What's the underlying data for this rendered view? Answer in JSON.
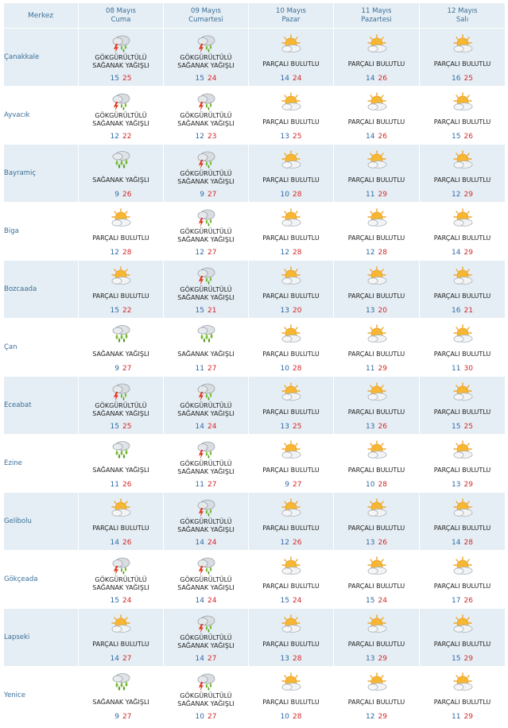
{
  "header": {
    "center_label": "Merkez",
    "days": [
      {
        "date": "08 Mayıs",
        "day": "Cuma"
      },
      {
        "date": "09 Mayıs",
        "day": "Cumartesi"
      },
      {
        "date": "10 Mayıs",
        "day": "Pazar"
      },
      {
        "date": "11 Mayıs",
        "day": "Pazartesi"
      },
      {
        "date": "12 Mayıs",
        "day": "Salı"
      }
    ]
  },
  "conditions": {
    "storm": {
      "line1": "GÖKGÜRÜLTÜLÜ",
      "line2": "SAĞANAK YAĞIŞLI",
      "icon": "thunderstorm-icon"
    },
    "showers": {
      "line1": "SAĞANAK YAĞIŞLI",
      "line2": "",
      "icon": "rain-showers-icon"
    },
    "partly": {
      "line1": "PARÇALI BULUTLU",
      "line2": "",
      "icon": "partly-cloudy-icon"
    }
  },
  "colors": {
    "header_bg": "#e5eef4",
    "row_shade": "#e5eef4",
    "label_blue": "#3b6f99",
    "min_temp": "#2f6aa8",
    "max_temp": "#d0292c"
  },
  "rows": [
    {
      "city": "Çanakkale",
      "days": [
        {
          "cond": "storm",
          "min": "15",
          "max": "25"
        },
        {
          "cond": "storm",
          "min": "15",
          "max": "24"
        },
        {
          "cond": "partly",
          "min": "14",
          "max": "24"
        },
        {
          "cond": "partly",
          "min": "14",
          "max": "26"
        },
        {
          "cond": "partly",
          "min": "16",
          "max": "25"
        }
      ]
    },
    {
      "city": "Ayvacık",
      "days": [
        {
          "cond": "storm",
          "min": "12",
          "max": "22"
        },
        {
          "cond": "storm",
          "min": "12",
          "max": "23"
        },
        {
          "cond": "partly",
          "min": "13",
          "max": "25"
        },
        {
          "cond": "partly",
          "min": "14",
          "max": "26"
        },
        {
          "cond": "partly",
          "min": "15",
          "max": "26"
        }
      ]
    },
    {
      "city": "Bayramiç",
      "days": [
        {
          "cond": "showers",
          "min": "9",
          "max": "26"
        },
        {
          "cond": "storm",
          "min": "9",
          "max": "27"
        },
        {
          "cond": "partly",
          "min": "10",
          "max": "28"
        },
        {
          "cond": "partly",
          "min": "11",
          "max": "29"
        },
        {
          "cond": "partly",
          "min": "12",
          "max": "29"
        }
      ]
    },
    {
      "city": "Biga",
      "days": [
        {
          "cond": "partly",
          "min": "12",
          "max": "28"
        },
        {
          "cond": "storm",
          "min": "12",
          "max": "27"
        },
        {
          "cond": "partly",
          "min": "12",
          "max": "28"
        },
        {
          "cond": "partly",
          "min": "12",
          "max": "28"
        },
        {
          "cond": "partly",
          "min": "14",
          "max": "29"
        }
      ]
    },
    {
      "city": "Bozcaada",
      "days": [
        {
          "cond": "partly",
          "min": "15",
          "max": "22"
        },
        {
          "cond": "storm",
          "min": "15",
          "max": "21"
        },
        {
          "cond": "partly",
          "min": "13",
          "max": "20"
        },
        {
          "cond": "partly",
          "min": "13",
          "max": "20"
        },
        {
          "cond": "partly",
          "min": "16",
          "max": "21"
        }
      ]
    },
    {
      "city": "Çan",
      "days": [
        {
          "cond": "showers",
          "min": "9",
          "max": "27"
        },
        {
          "cond": "showers",
          "min": "11",
          "max": "27"
        },
        {
          "cond": "partly",
          "min": "10",
          "max": "28"
        },
        {
          "cond": "partly",
          "min": "11",
          "max": "29"
        },
        {
          "cond": "partly",
          "min": "11",
          "max": "30"
        }
      ]
    },
    {
      "city": "Eceabat",
      "days": [
        {
          "cond": "storm",
          "min": "15",
          "max": "25"
        },
        {
          "cond": "storm",
          "min": "14",
          "max": "24"
        },
        {
          "cond": "partly",
          "min": "13",
          "max": "25"
        },
        {
          "cond": "partly",
          "min": "13",
          "max": "26"
        },
        {
          "cond": "partly",
          "min": "15",
          "max": "25"
        }
      ]
    },
    {
      "city": "Ezine",
      "days": [
        {
          "cond": "showers",
          "min": "11",
          "max": "26"
        },
        {
          "cond": "storm",
          "min": "11",
          "max": "27"
        },
        {
          "cond": "partly",
          "min": "9",
          "max": "27"
        },
        {
          "cond": "partly",
          "min": "10",
          "max": "28"
        },
        {
          "cond": "partly",
          "min": "13",
          "max": "29"
        }
      ]
    },
    {
      "city": "Gelibolu",
      "days": [
        {
          "cond": "partly",
          "min": "14",
          "max": "26"
        },
        {
          "cond": "storm",
          "min": "14",
          "max": "24"
        },
        {
          "cond": "partly",
          "min": "12",
          "max": "26"
        },
        {
          "cond": "partly",
          "min": "13",
          "max": "26"
        },
        {
          "cond": "partly",
          "min": "14",
          "max": "28"
        }
      ]
    },
    {
      "city": "Gökçeada",
      "days": [
        {
          "cond": "storm",
          "min": "15",
          "max": "24"
        },
        {
          "cond": "storm",
          "min": "14",
          "max": "24"
        },
        {
          "cond": "partly",
          "min": "15",
          "max": "24"
        },
        {
          "cond": "partly",
          "min": "15",
          "max": "24"
        },
        {
          "cond": "partly",
          "min": "17",
          "max": "26"
        }
      ]
    },
    {
      "city": "Lapseki",
      "days": [
        {
          "cond": "partly",
          "min": "14",
          "max": "27"
        },
        {
          "cond": "storm",
          "min": "14",
          "max": "27"
        },
        {
          "cond": "partly",
          "min": "13",
          "max": "28"
        },
        {
          "cond": "partly",
          "min": "13",
          "max": "29"
        },
        {
          "cond": "partly",
          "min": "15",
          "max": "29"
        }
      ]
    },
    {
      "city": "Yenice",
      "days": [
        {
          "cond": "showers",
          "min": "9",
          "max": "27"
        },
        {
          "cond": "storm",
          "min": "10",
          "max": "27"
        },
        {
          "cond": "partly",
          "min": "10",
          "max": "28"
        },
        {
          "cond": "partly",
          "min": "12",
          "max": "29"
        },
        {
          "cond": "partly",
          "min": "11",
          "max": "29"
        }
      ]
    }
  ]
}
